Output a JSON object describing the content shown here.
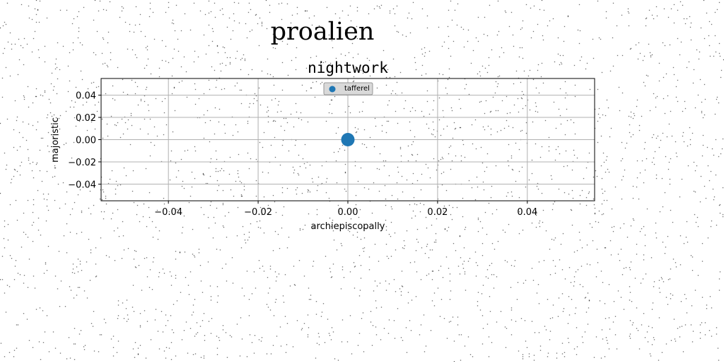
{
  "figure": {
    "suptitle": "proalien"
  },
  "chart_data": {
    "type": "scatter",
    "title": "nightwork",
    "xlabel": "archiepiscopally",
    "ylabel": "majoristic",
    "xlim": [
      -0.055,
      0.055
    ],
    "ylim": [
      -0.055,
      0.055
    ],
    "xticks": [
      -0.04,
      -0.02,
      0.0,
      0.02,
      0.04
    ],
    "yticks": [
      -0.04,
      -0.02,
      0.0,
      0.02,
      0.04
    ],
    "xtick_labels": [
      "−0.04",
      "−0.02",
      "0.00",
      "0.02",
      "0.04"
    ],
    "ytick_labels": [
      "−0.04",
      "−0.02",
      "0.00",
      "0.02",
      "0.04"
    ],
    "grid": true,
    "legend_position": "top-center",
    "series": [
      {
        "name": "tafferel",
        "color": "#1f77b4",
        "points": [
          {
            "x": 0.0,
            "y": 0.0
          }
        ]
      }
    ]
  }
}
